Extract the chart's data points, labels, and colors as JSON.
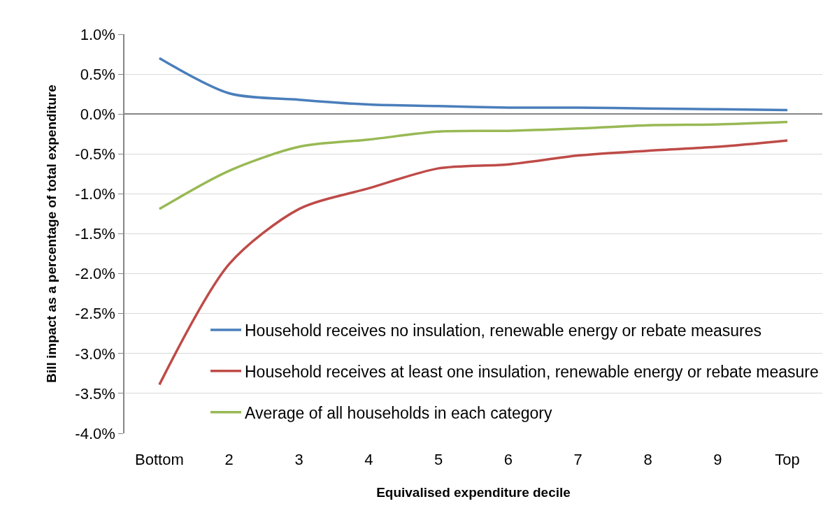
{
  "chart_data": {
    "type": "line",
    "xlabel": "Equivalised expenditure decile",
    "ylabel": "Bill impact as a percentage of total expenditure",
    "categories": [
      "Bottom",
      "2",
      "3",
      "4",
      "5",
      "6",
      "7",
      "8",
      "9",
      "Top"
    ],
    "series": [
      {
        "name": "Household receives no insulation, renewable energy or rebate measures",
        "color": "#4a7ebb",
        "values": [
          0.7,
          0.26,
          0.18,
          0.12,
          0.1,
          0.08,
          0.08,
          0.07,
          0.06,
          0.05
        ]
      },
      {
        "name": "Household receives at least one insulation, renewable energy or rebate measure",
        "color": "#be4b48",
        "values": [
          -3.39,
          -1.88,
          -1.19,
          -0.93,
          -0.68,
          -0.63,
          -0.52,
          -0.46,
          -0.41,
          -0.33
        ]
      },
      {
        "name": "Average of all households in each category",
        "color": "#98b954",
        "values": [
          -1.19,
          -0.71,
          -0.41,
          -0.32,
          -0.22,
          -0.21,
          -0.18,
          -0.14,
          -0.13,
          -0.1
        ]
      }
    ],
    "ylim": [
      -4.0,
      1.0
    ],
    "yticks": [
      {
        "value": -4.0,
        "label": "-4.0%"
      },
      {
        "value": -3.5,
        "label": "-3.5%"
      },
      {
        "value": -3.0,
        "label": "-3.0%"
      },
      {
        "value": -2.5,
        "label": "-2.5%"
      },
      {
        "value": -2.0,
        "label": "-2.0%"
      },
      {
        "value": -1.5,
        "label": "-1.5%"
      },
      {
        "value": -1.0,
        "label": "-1.0%"
      },
      {
        "value": -0.5,
        "label": "-0.5%"
      },
      {
        "value": 0.0,
        "label": "0.0%"
      },
      {
        "value": 0.5,
        "label": "0.5%"
      },
      {
        "value": 1.0,
        "label": "1.0%"
      }
    ],
    "grid": "y",
    "legend": "bottom right"
  }
}
